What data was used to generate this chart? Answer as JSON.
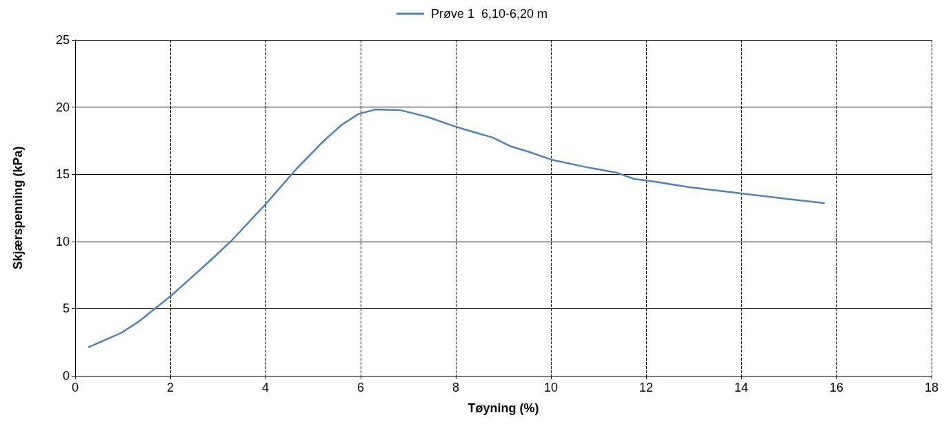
{
  "chart_data": {
    "type": "line",
    "xlabel": "Tøyning (%)",
    "ylabel": "Skjærspenning (kPa)",
    "xlim": [
      0,
      18
    ],
    "xticks": [
      0,
      2,
      4,
      6,
      8,
      10,
      12,
      14,
      16,
      18
    ],
    "ylim": [
      0,
      25
    ],
    "yticks": [
      0,
      5,
      10,
      15,
      20,
      25
    ],
    "grid": true,
    "legend": "top",
    "marker": "none",
    "line_style": "solid",
    "series": [
      {
        "name": "Prøve 1  6,10-6,20 m",
        "color": "#4f81bd",
        "x": [
          0.29,
          0.96,
          1.32,
          2.01,
          2.77,
          3.28,
          4.0,
          4.65,
          5.23,
          5.59,
          5.96,
          6.32,
          6.83,
          7.41,
          7.99,
          8.28,
          8.78,
          9.14,
          9.51,
          10.01,
          10.74,
          11.39,
          11.75,
          12.19,
          12.91,
          13.64,
          14.36,
          15.09,
          15.74
        ],
        "values": [
          2.15,
          3.18,
          4.0,
          5.94,
          8.35,
          10.04,
          12.76,
          15.4,
          17.5,
          18.65,
          19.5,
          19.83,
          19.78,
          19.26,
          18.55,
          18.24,
          17.73,
          17.1,
          16.7,
          16.09,
          15.53,
          15.11,
          14.65,
          14.45,
          14.04,
          13.73,
          13.42,
          13.11,
          12.86
        ]
      }
    ]
  }
}
